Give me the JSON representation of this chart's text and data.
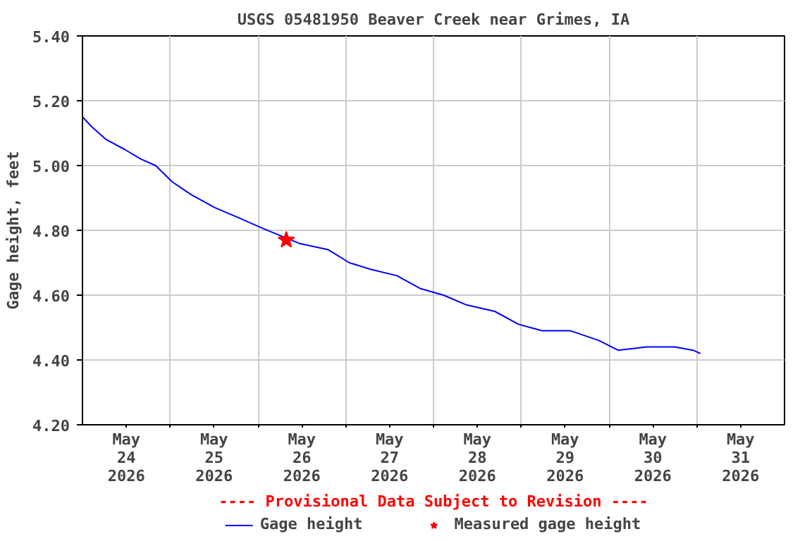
{
  "chart_data": {
    "type": "line",
    "title": "USGS 05481950 Beaver Creek near Grimes, IA",
    "ylabel": "Gage height, feet",
    "annotations": [
      "---- Provisional Data Subject to Revision ----"
    ],
    "xlim": [
      "2026-05-24T00:00",
      "2026-06-01T00:00"
    ],
    "xticks": [
      {
        "value": "2026-05-24T12:00",
        "label": "May\n24\n2026"
      },
      {
        "value": "2026-05-25T00:00",
        "label": null
      },
      {
        "value": "2026-05-25T12:00",
        "label": "May\n25\n2026"
      },
      {
        "value": "2026-05-26T00:00",
        "label": null
      },
      {
        "value": "2026-05-26T12:00",
        "label": "May\n26\n2026"
      },
      {
        "value": "2026-05-27T00:00",
        "label": null
      },
      {
        "value": "2026-05-27T12:00",
        "label": "May\n27\n2026"
      },
      {
        "value": "2026-05-28T00:00",
        "label": null
      },
      {
        "value": "2026-05-28T12:00",
        "label": "May\n28\n2026"
      },
      {
        "value": "2026-05-29T00:00",
        "label": null
      },
      {
        "value": "2026-05-29T12:00",
        "label": "May\n29\n2026"
      },
      {
        "value": "2026-05-30T00:00",
        "label": null
      },
      {
        "value": "2026-05-30T12:00",
        "label": "May\n30\n2026"
      },
      {
        "value": "2026-05-31T00:00",
        "label": null
      },
      {
        "value": "2026-05-31T12:00",
        "label": "May\n31\n2026"
      }
    ],
    "ylim": [
      4.2,
      5.4
    ],
    "yticks": [
      {
        "value": 4.2,
        "label": "4.20"
      },
      {
        "value": 4.4,
        "label": "4.40"
      },
      {
        "value": 4.6,
        "label": "4.60"
      },
      {
        "value": 4.8,
        "label": "4.80"
      },
      {
        "value": 5.0,
        "label": "5.00"
      },
      {
        "value": 5.2,
        "label": "5.20"
      },
      {
        "value": 5.4,
        "label": "5.40"
      }
    ],
    "grid": true,
    "legend": "bottom",
    "series": [
      {
        "name": "Gage height",
        "type": "line",
        "color": "#0000ff",
        "marker": "none",
        "x": [
          "2026-05-24T00:00",
          "2026-05-24T02:30",
          "2026-05-24T06:30",
          "2026-05-24T11:30",
          "2026-05-24T16:00",
          "2026-05-24T20:00",
          "2026-05-25T00:30",
          "2026-05-25T05:45",
          "2026-05-25T12:15",
          "2026-05-25T18:30",
          "2026-05-26T00:30",
          "2026-05-26T04:45",
          "2026-05-26T11:15",
          "2026-05-26T19:15",
          "2026-05-27T01:00",
          "2026-05-27T06:45",
          "2026-05-27T14:00",
          "2026-05-27T20:30",
          "2026-05-28T02:45",
          "2026-05-28T09:00",
          "2026-05-28T16:45",
          "2026-05-28T23:15",
          "2026-05-29T05:45",
          "2026-05-29T13:30",
          "2026-05-29T21:15",
          "2026-05-30T02:30",
          "2026-05-30T10:15",
          "2026-05-30T18:00",
          "2026-05-30T23:00",
          "2026-05-31T01:00"
        ],
        "values": [
          5.15,
          5.12,
          5.08,
          5.05,
          5.02,
          5.0,
          4.95,
          4.91,
          4.87,
          4.84,
          4.81,
          4.79,
          4.76,
          4.74,
          4.7,
          4.68,
          4.66,
          4.62,
          4.6,
          4.57,
          4.55,
          4.51,
          4.49,
          4.49,
          4.46,
          4.43,
          4.44,
          4.44,
          4.43,
          4.42
        ]
      },
      {
        "name": "Measured gage height",
        "type": "scatter",
        "color": "#ff0000",
        "marker": "star",
        "x": [
          "2026-05-26T07:45"
        ],
        "values": [
          4.77
        ]
      }
    ]
  }
}
